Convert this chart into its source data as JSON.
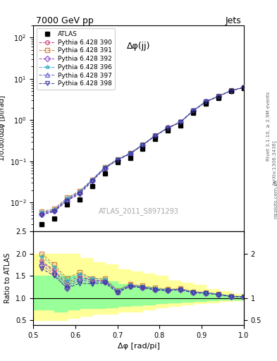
{
  "title_top": "7000 GeV pp",
  "title_right": "Jets",
  "annotation": "Δφ(jj)",
  "watermark": "ATLAS_2011_S8971293",
  "right_label": "Rivet 3.1.10, ≥ 2.9M events",
  "arxiv_label": "[arXiv:1306.3436]",
  "mcplots_label": "mcplots.cern.ch",
  "ylabel_main": "1/σ;dσ/dΔφ [pi/rad]",
  "ylabel_ratio": "Ratio to ATLAS",
  "xlabel": "Δφ [rad/pi]",
  "xlim": [
    0.5,
    1.0
  ],
  "ylim_main": [
    0.002,
    200.0
  ],
  "ylim_ratio": [
    0.4,
    2.5
  ],
  "atlas_x": [
    0.52,
    0.55,
    0.58,
    0.61,
    0.64,
    0.67,
    0.7,
    0.73,
    0.76,
    0.79,
    0.82,
    0.85,
    0.88,
    0.91,
    0.94,
    0.97,
    1.0
  ],
  "atlas_y": [
    0.003,
    0.004,
    0.009,
    0.012,
    0.025,
    0.05,
    0.095,
    0.12,
    0.2,
    0.35,
    0.55,
    0.75,
    1.5,
    2.5,
    3.5,
    5.0,
    6.0
  ],
  "mc_x": [
    0.52,
    0.55,
    0.58,
    0.61,
    0.64,
    0.67,
    0.7,
    0.73,
    0.76,
    0.79,
    0.82,
    0.85,
    0.88,
    0.91,
    0.94,
    0.97,
    1.0
  ],
  "mc390_y": [
    0.0055,
    0.0065,
    0.012,
    0.018,
    0.035,
    0.07,
    0.11,
    0.155,
    0.25,
    0.42,
    0.65,
    0.9,
    1.7,
    2.8,
    3.8,
    5.2,
    6.2
  ],
  "mc391_y": [
    0.006,
    0.007,
    0.013,
    0.019,
    0.036,
    0.072,
    0.112,
    0.158,
    0.255,
    0.43,
    0.66,
    0.91,
    1.72,
    2.82,
    3.82,
    5.22,
    6.22
  ],
  "mc392_y": [
    0.0052,
    0.0062,
    0.011,
    0.017,
    0.034,
    0.068,
    0.108,
    0.152,
    0.248,
    0.415,
    0.645,
    0.895,
    1.68,
    2.78,
    3.78,
    5.18,
    6.18
  ],
  "mc396_y": [
    0.0058,
    0.0068,
    0.0125,
    0.0185,
    0.036,
    0.071,
    0.111,
    0.156,
    0.252,
    0.425,
    0.655,
    0.905,
    1.71,
    2.81,
    3.81,
    5.21,
    6.21
  ],
  "mc397_y": [
    0.0054,
    0.0064,
    0.0115,
    0.0175,
    0.035,
    0.069,
    0.109,
    0.154,
    0.25,
    0.42,
    0.65,
    0.9,
    1.7,
    2.8,
    3.8,
    5.2,
    6.2
  ],
  "mc398_y": [
    0.005,
    0.006,
    0.011,
    0.016,
    0.033,
    0.067,
    0.107,
    0.151,
    0.247,
    0.413,
    0.643,
    0.893,
    1.675,
    2.775,
    3.775,
    5.175,
    6.175
  ],
  "yellow_band_x": [
    0.505,
    0.535,
    0.565,
    0.595,
    0.625,
    0.655,
    0.685,
    0.715,
    0.745,
    0.775,
    0.805,
    0.835,
    0.865,
    0.895,
    0.925,
    0.955,
    0.985
  ],
  "yellow_band_lo": [
    0.5,
    0.5,
    0.5,
    0.55,
    0.6,
    0.65,
    0.65,
    0.7,
    0.7,
    0.75,
    0.8,
    0.82,
    0.85,
    0.88,
    0.9,
    0.93,
    0.95
  ],
  "yellow_band_hi": [
    2.0,
    2.0,
    2.0,
    2.0,
    1.9,
    1.8,
    1.75,
    1.65,
    1.6,
    1.55,
    1.5,
    1.4,
    1.35,
    1.3,
    1.2,
    1.15,
    1.1
  ],
  "green_band_lo": [
    0.75,
    0.75,
    0.7,
    0.75,
    0.78,
    0.78,
    0.8,
    0.82,
    0.84,
    0.86,
    0.88,
    0.9,
    0.92,
    0.94,
    0.95,
    0.96,
    0.97
  ],
  "green_band_hi": [
    1.5,
    1.5,
    1.5,
    1.5,
    1.45,
    1.4,
    1.38,
    1.32,
    1.28,
    1.25,
    1.22,
    1.18,
    1.15,
    1.12,
    1.1,
    1.07,
    1.05
  ],
  "mc_colors": [
    "#cc3377",
    "#cc7733",
    "#8844cc",
    "#33aacc",
    "#5555cc",
    "#333399"
  ],
  "mc_markers": [
    "o",
    "s",
    "D",
    "*",
    "^",
    "v"
  ],
  "mc_labels": [
    "Pythia 6.428 390",
    "Pythia 6.428 391",
    "Pythia 6.428 392",
    "Pythia 6.428 396",
    "Pythia 6.428 397",
    "Pythia 6.428 398"
  ]
}
